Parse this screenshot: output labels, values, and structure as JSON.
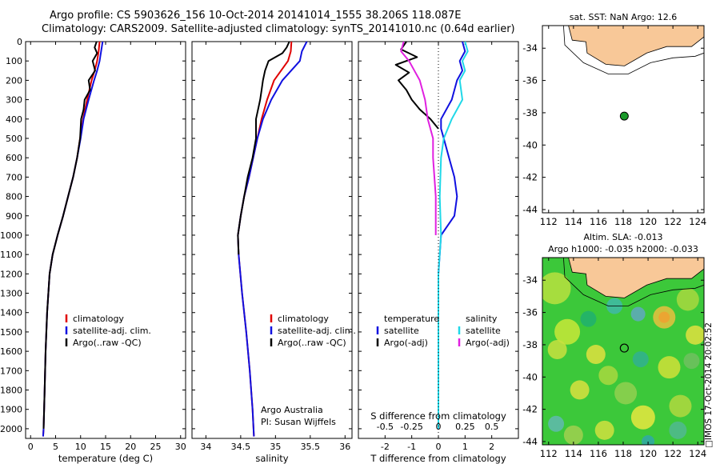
{
  "titles": {
    "line1": "Argo profile: CS 5903626_156 10-Oct-2014 20141014_1555 38.206S 118.087E",
    "line2": "Climatology: CARS2009. Satellite-adjusted climatology: synTS_20141010.nc (0.64d earlier)"
  },
  "side_text": "□IMOS 17-Oct-2014 20:02:52",
  "colors": {
    "climatology": "#e00000",
    "satellite": "#1010e0",
    "argo": "#000000",
    "sal_sat": "#20d8e8",
    "sal_argo": "#e020e0",
    "land": "#f8c898",
    "float": "#1a9a2a"
  },
  "chart_data": [
    {
      "id": "temperature",
      "type": "line",
      "xlabel": "temperature (deg C)",
      "ylabel": "",
      "xlim": [
        -1,
        31
      ],
      "ylim": [
        2050,
        0
      ],
      "xticks": [
        0,
        5,
        10,
        15,
        20,
        25,
        30
      ],
      "yticks": [
        0,
        100,
        200,
        300,
        400,
        500,
        600,
        700,
        800,
        900,
        1000,
        1100,
        1200,
        1300,
        1400,
        1500,
        1600,
        1700,
        1800,
        1900,
        2000
      ],
      "legend": [
        "climatology",
        "satellite-adj. clim.",
        "Argo(..raw -QC)"
      ],
      "series": [
        {
          "name": "climatology",
          "color": "#e00000",
          "depth": [
            0,
            50,
            100,
            150,
            200,
            300,
            400,
            500,
            600,
            700,
            800,
            900,
            1000,
            1100,
            1200,
            1400,
            1600,
            1800,
            2000,
            2040
          ],
          "values": [
            13.8,
            13.6,
            13.3,
            12.8,
            12.2,
            11.3,
            10.5,
            9.9,
            9.3,
            8.5,
            7.5,
            6.5,
            5.4,
            4.4,
            3.8,
            3.3,
            3.0,
            2.8,
            2.6,
            2.5
          ]
        },
        {
          "name": "satellite-adj. clim.",
          "color": "#1010e0",
          "depth": [
            0,
            50,
            100,
            150,
            200,
            300,
            400,
            500,
            600,
            700,
            800,
            900,
            1000,
            1100,
            1200,
            1400,
            1600,
            1800,
            2000,
            2040
          ],
          "values": [
            14.4,
            14.1,
            13.8,
            13.3,
            12.7,
            11.6,
            10.6,
            10.0,
            9.3,
            8.5,
            7.5,
            6.5,
            5.4,
            4.4,
            3.8,
            3.3,
            3.0,
            2.8,
            2.6,
            2.5
          ]
        },
        {
          "name": "Argo(..raw -QC)",
          "color": "#000000",
          "depth": [
            0,
            30,
            60,
            100,
            150,
            200,
            250,
            300,
            350,
            400,
            500,
            600,
            700,
            800,
            900,
            1000,
            1100,
            1200,
            1400,
            1600,
            1800,
            2000
          ],
          "values": [
            13.2,
            12.8,
            13.3,
            12.4,
            12.9,
            11.6,
            11.9,
            10.8,
            10.6,
            10.1,
            9.9,
            9.3,
            8.5,
            7.5,
            6.5,
            5.4,
            4.4,
            3.8,
            3.3,
            3.0,
            2.8,
            2.6
          ]
        }
      ]
    },
    {
      "id": "salinity",
      "type": "line",
      "xlabel": "salinity",
      "ylabel": "",
      "xlim": [
        33.8,
        36.1
      ],
      "ylim": [
        2050,
        0
      ],
      "xticks": [
        34,
        34.5,
        35,
        35.5,
        36
      ],
      "legend": [
        "climatology",
        "satellite-adj. clim.",
        "Argo(..raw -QC)"
      ],
      "annotations": [
        "Argo Australia",
        "PI: Susan Wijffels"
      ],
      "series": [
        {
          "name": "climatology",
          "color": "#e00000",
          "depth": [
            0,
            50,
            100,
            200,
            300,
            400,
            500,
            600,
            700,
            800,
            900,
            1000,
            1100,
            1300,
            1500,
            1700,
            1900,
            2040
          ],
          "values": [
            35.23,
            35.22,
            35.18,
            34.98,
            34.88,
            34.8,
            34.74,
            34.68,
            34.62,
            34.55,
            34.5,
            34.46,
            34.47,
            34.52,
            34.58,
            34.63,
            34.67,
            34.69
          ]
        },
        {
          "name": "satellite-adj. clim.",
          "color": "#1010e0",
          "depth": [
            0,
            50,
            100,
            200,
            300,
            400,
            500,
            600,
            700,
            800,
            900,
            1000,
            1100,
            1300,
            1500,
            1700,
            1900,
            2040
          ],
          "values": [
            35.45,
            35.38,
            35.35,
            35.1,
            34.94,
            34.82,
            34.74,
            34.68,
            34.62,
            34.55,
            34.5,
            34.46,
            34.47,
            34.52,
            34.58,
            34.63,
            34.67,
            34.69
          ]
        },
        {
          "name": "Argo(..raw -QC)",
          "color": "#000000",
          "depth": [
            0,
            30,
            60,
            100,
            150,
            200,
            250,
            300,
            400,
            500,
            600,
            700,
            800,
            900,
            1000,
            1100
          ],
          "values": [
            35.2,
            35.16,
            35.1,
            34.9,
            34.85,
            34.82,
            34.8,
            34.78,
            34.72,
            34.72,
            34.67,
            34.6,
            34.55,
            34.5,
            34.46,
            34.47
          ]
        }
      ]
    },
    {
      "id": "difference",
      "type": "line",
      "xlabel": "T difference from climatology",
      "xlabel_top": "S difference from climatology",
      "xlim": [
        -3,
        3
      ],
      "ylim": [
        2050,
        0
      ],
      "xticks": [
        -2,
        -1,
        0,
        1,
        2
      ],
      "xticklabels_top": [
        "-0.5",
        "-0.25",
        "0",
        "0.25",
        "0.5"
      ],
      "legend_t": [
        "temperature",
        "satellite",
        "Argo(-adj)"
      ],
      "legend_s": [
        "salinity",
        "satellite",
        "Argo(-adj)"
      ],
      "series": [
        {
          "name": "T satellite",
          "color": "#1010e0",
          "depth": [
            0,
            50,
            100,
            150,
            200,
            300,
            400,
            450,
            500,
            600,
            700,
            800,
            900,
            1000,
            1100,
            1200,
            1400,
            1600,
            1800,
            2000
          ],
          "values": [
            0.9,
            1.0,
            0.8,
            0.9,
            0.7,
            0.5,
            0.1,
            0.1,
            0.2,
            0.4,
            0.6,
            0.7,
            0.6,
            0.1,
            0.05,
            0,
            0,
            0,
            0,
            0
          ]
        },
        {
          "name": "T Argo(-adj)",
          "color": "#000000",
          "depth": [
            0,
            40,
            80,
            120,
            160,
            200,
            250,
            300,
            350,
            400,
            450
          ],
          "values": [
            -1.2,
            -1.4,
            -0.8,
            -1.6,
            -1.1,
            -1.5,
            -1.2,
            -1.0,
            -0.7,
            -0.3,
            0.0
          ]
        },
        {
          "name": "S satellite",
          "color": "#20d8e8",
          "depth": [
            0,
            50,
            100,
            150,
            200,
            300,
            400,
            500,
            600,
            800,
            1000,
            1200,
            1500,
            1800,
            2000
          ],
          "values": [
            1.0,
            1.1,
            0.9,
            1.0,
            0.8,
            0.9,
            0.5,
            0.2,
            0.1,
            0.05,
            0.1,
            0,
            0,
            0,
            0
          ]
        },
        {
          "name": "S Argo(-adj)",
          "color": "#e020e0",
          "depth": [
            0,
            50,
            100,
            150,
            200,
            300,
            400,
            500,
            600,
            800,
            1000
          ],
          "values": [
            -1.3,
            -1.4,
            -1.1,
            -0.9,
            -0.7,
            -0.5,
            -0.4,
            -0.2,
            -0.2,
            -0.1,
            -0.1
          ]
        }
      ]
    },
    {
      "id": "sst-map",
      "type": "scatter",
      "title": "sat. SST: NaN Argo: 12.6",
      "xlim": [
        111.5,
        124.5
      ],
      "ylim": [
        -44.2,
        -32.6
      ],
      "xticks": [
        112,
        114,
        116,
        118,
        120,
        122,
        124
      ],
      "yticks": [
        -34,
        -36,
        -38,
        -40,
        -42,
        -44
      ],
      "points": [
        {
          "x": 118.087,
          "y": -38.206
        }
      ]
    },
    {
      "id": "sla-map",
      "type": "heatmap",
      "title": "Altim. SLA: -0.013",
      "subtitle": "Argo h1000: -0.035 h2000: -0.033",
      "xlim": [
        111.5,
        124.5
      ],
      "ylim": [
        -44.2,
        -32.6
      ],
      "xticks": [
        112,
        114,
        116,
        118,
        120,
        122,
        124
      ],
      "yticks": [
        -34,
        -36,
        -38,
        -40,
        -42,
        -44
      ],
      "points": [
        {
          "x": 118.087,
          "y": -38.206
        }
      ]
    }
  ]
}
